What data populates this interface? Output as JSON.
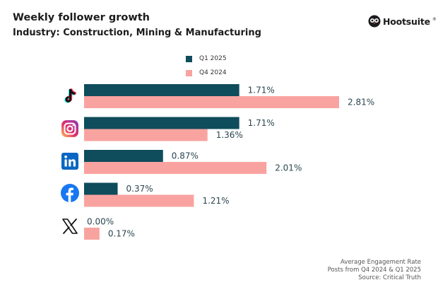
{
  "header": {
    "title": "Weekly follower growth",
    "subtitle": "Industry: Construction, Mining & Manufacturing"
  },
  "brand": {
    "name": "Hootsuite",
    "registered": "®"
  },
  "footnote": {
    "line1": "Average Engagement Rate",
    "line2": "Posts from Q4 2024 & Q1 2025",
    "line3": "Source: Critical Truth"
  },
  "colors": {
    "q1_2025": "#0f4c5c",
    "q4_2024": "#f9a3a0"
  },
  "chart_data": {
    "type": "bar",
    "orientation": "horizontal",
    "title": "Weekly follower growth",
    "subtitle": "Industry: Construction, Mining & Manufacturing",
    "categories": [
      "TikTok",
      "Instagram",
      "LinkedIn",
      "Facebook",
      "X"
    ],
    "series": [
      {
        "name": "Q1 2025",
        "values": [
          1.71,
          1.71,
          0.87,
          0.37,
          0.0
        ],
        "labels": [
          "1.71%",
          "1.71%",
          "0.87%",
          "0.37%",
          "0.00%"
        ]
      },
      {
        "name": "Q4 2024",
        "values": [
          2.81,
          1.36,
          2.01,
          1.21,
          0.17
        ],
        "labels": [
          "2.81%",
          "1.36%",
          "2.01%",
          "1.21%",
          "0.17%"
        ]
      }
    ],
    "xlim": [
      0,
      2.81
    ],
    "grid": false,
    "legend": "top-center",
    "xlabel": "",
    "ylabel": ""
  }
}
